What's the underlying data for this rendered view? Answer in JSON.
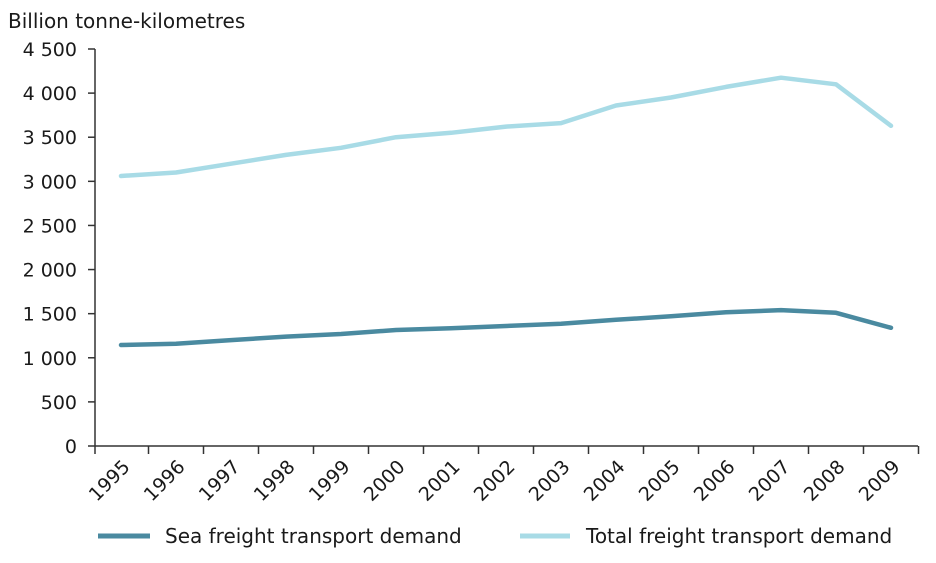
{
  "chart_data": {
    "type": "line",
    "title": "",
    "xlabel": "",
    "ylabel": "Billion tonne-kilometres",
    "categories": [
      "1995",
      "1996",
      "1997",
      "1998",
      "1999",
      "2000",
      "2001",
      "2002",
      "2003",
      "2004",
      "2005",
      "2006",
      "2007",
      "2008",
      "2009"
    ],
    "ylim": [
      0,
      4500
    ],
    "yticks": [
      0,
      500,
      1000,
      1500,
      2000,
      2500,
      3000,
      3500,
      4000,
      4500
    ],
    "ytick_labels": [
      "0",
      "500",
      "1 000",
      "1 500",
      "2 000",
      "2 500",
      "3 000",
      "3 500",
      "4 000",
      "4 500"
    ],
    "grid": false,
    "legend_position": "bottom",
    "series": [
      {
        "name": "Sea freight transport demand",
        "color": "#4a8aa0",
        "values": [
          1145,
          1160,
          1200,
          1240,
          1270,
          1315,
          1335,
          1360,
          1385,
          1430,
          1470,
          1515,
          1540,
          1510,
          1340
        ]
      },
      {
        "name": "Total freight transport demand",
        "color": "#a8dbe6",
        "values": [
          3060,
          3100,
          3200,
          3300,
          3380,
          3500,
          3550,
          3620,
          3660,
          3860,
          3950,
          4070,
          4175,
          4100,
          3630
        ]
      }
    ]
  }
}
